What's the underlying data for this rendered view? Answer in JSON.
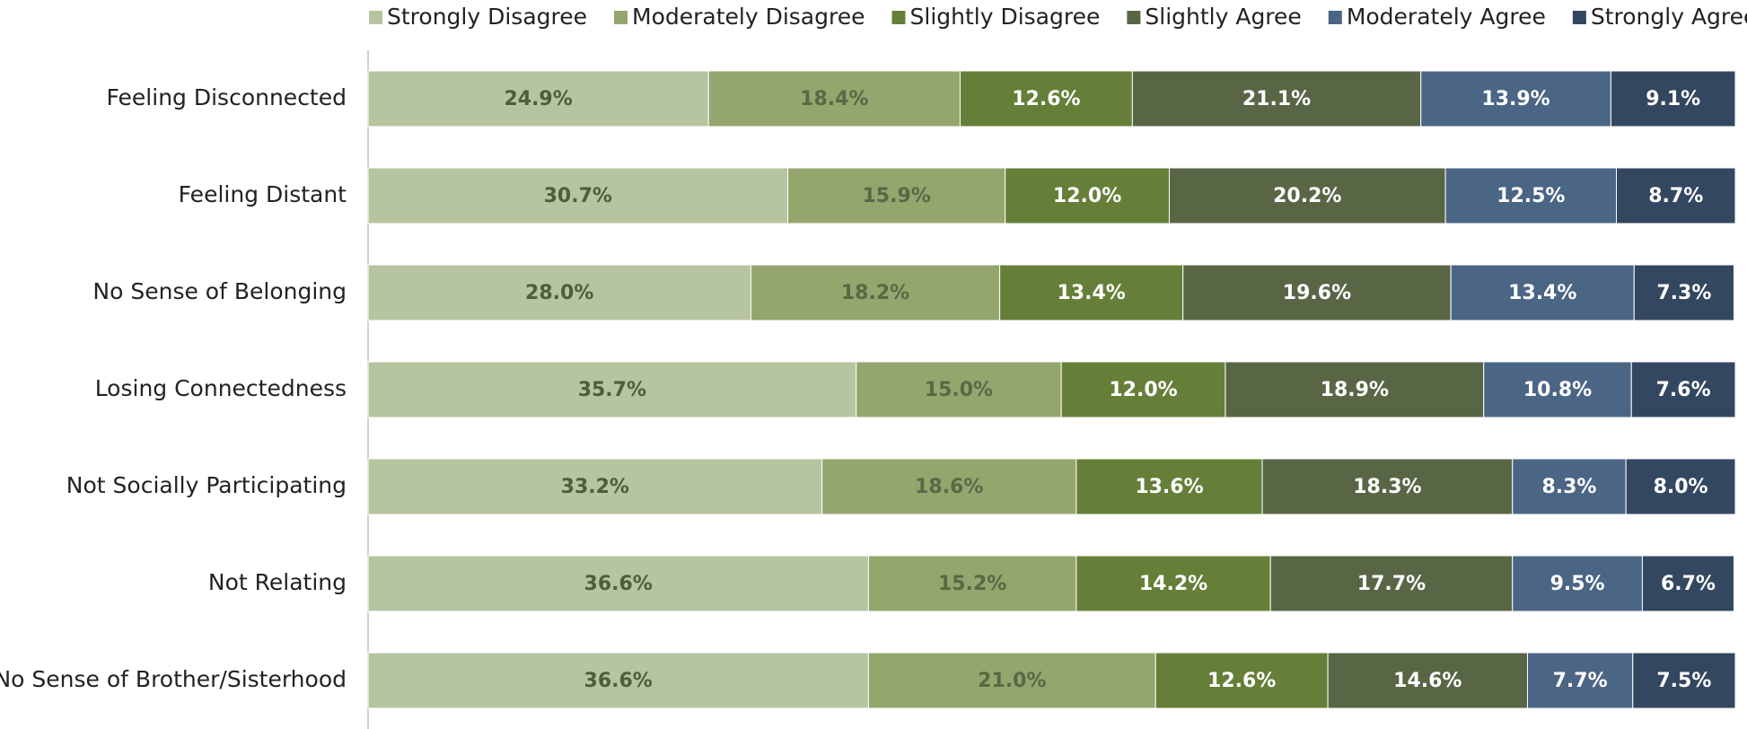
{
  "chart_data": {
    "type": "stacked-barh",
    "categories": [
      "Feeling Disconnected",
      "Feeling Distant",
      "No Sense of Belonging",
      "Losing Connectedness",
      "Not Socially Participating",
      "Not Relating",
      "No Sense of Brother/Sisterhood"
    ],
    "xlim": [
      0,
      100
    ],
    "legend": "top",
    "series": [
      {
        "name": "Strongly Disagree",
        "color": "#b7c4a0",
        "values": [
          24.9,
          30.7,
          28.0,
          35.7,
          33.2,
          36.6,
          36.6
        ],
        "value_labels": [
          "24.9%",
          "30.7%",
          "28.0%",
          "35.7%",
          "33.2%",
          "36.6%",
          "36.6%"
        ]
      },
      {
        "name": "Moderately Disagree",
        "color": "#94a66e",
        "values": [
          18.4,
          15.9,
          18.2,
          15.0,
          18.6,
          15.2,
          21.0
        ],
        "value_labels": [
          "18.4%",
          "15.9%",
          "18.2%",
          "15.0%",
          "18.6%",
          "15.2%",
          "21.0%"
        ]
      },
      {
        "name": "Slightly Disagree",
        "color": "#667f38",
        "values": [
          12.6,
          12.0,
          13.4,
          12.0,
          13.6,
          14.2,
          12.6
        ],
        "value_labels": [
          "12.6%",
          "12.0%",
          "13.4%",
          "12.0%",
          "13.6%",
          "14.2%",
          "12.6%"
        ]
      },
      {
        "name": "Slightly Agree",
        "color": "#596646",
        "values": [
          21.1,
          20.2,
          19.6,
          18.9,
          18.3,
          17.7,
          14.6
        ],
        "value_labels": [
          "21.1%",
          "20.2%",
          "19.6%",
          "18.9%",
          "18.3%",
          "17.7%",
          "14.6%"
        ]
      },
      {
        "name": "Moderately Agree",
        "color": "#4b6584",
        "values": [
          13.9,
          12.5,
          13.4,
          10.8,
          8.3,
          9.5,
          7.7
        ],
        "value_labels": [
          "13.9%",
          "12.5%",
          "13.4%",
          "10.8%",
          "8.3%",
          "9.5%",
          "7.7%"
        ]
      },
      {
        "name": "Strongly Agree",
        "color": "#344760",
        "values": [
          9.1,
          8.7,
          7.3,
          7.6,
          8.0,
          6.7,
          7.5
        ],
        "value_labels": [
          "9.1%",
          "8.7%",
          "7.3%",
          "7.6%",
          "8.0%",
          "6.7%",
          "7.5%"
        ]
      }
    ]
  }
}
